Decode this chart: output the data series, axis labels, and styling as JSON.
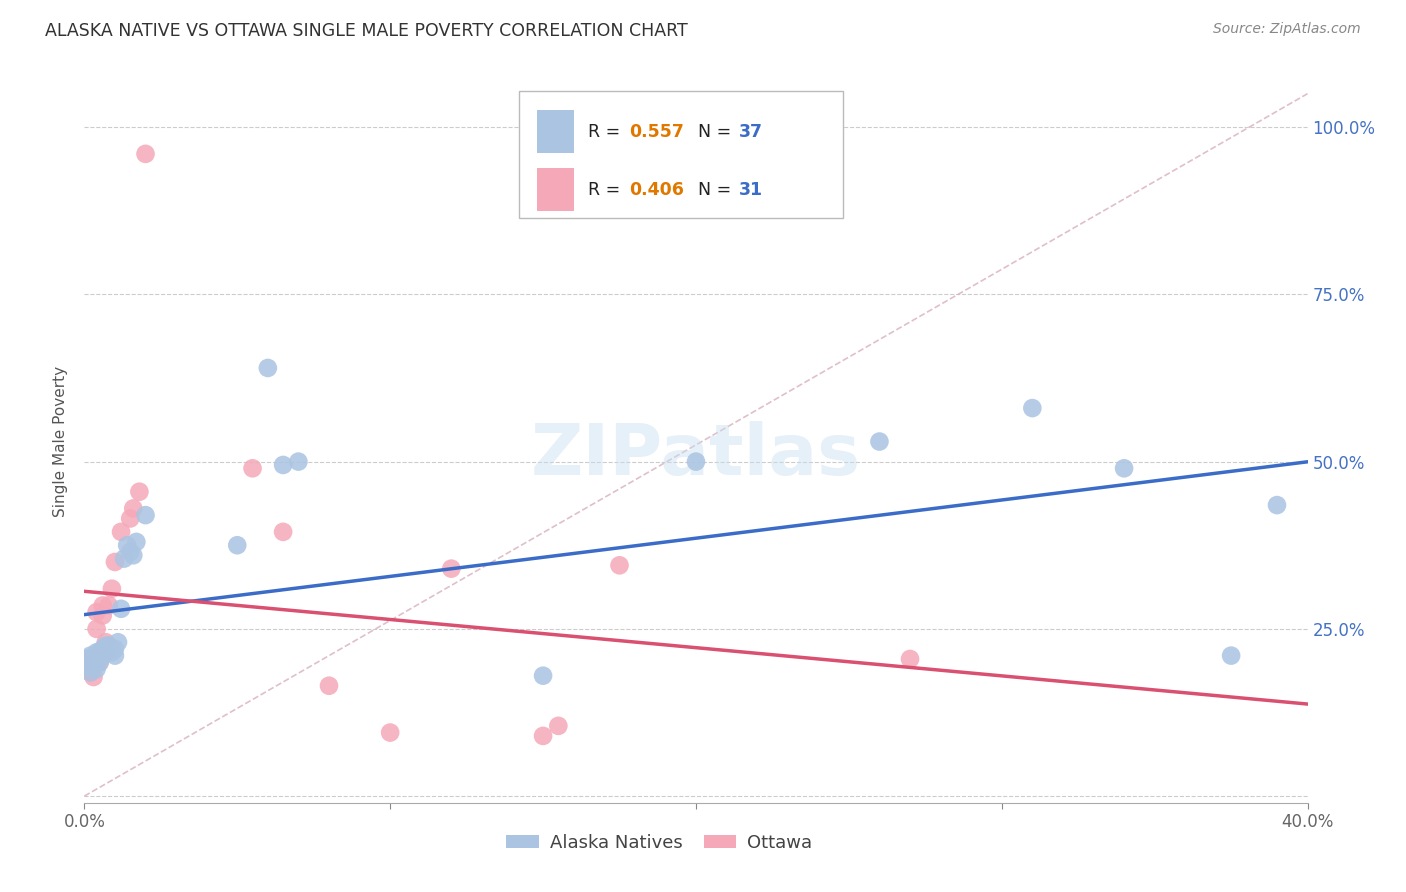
{
  "title": "ALASKA NATIVE VS OTTAWA SINGLE MALE POVERTY CORRELATION CHART",
  "source": "Source: ZipAtlas.com",
  "ylabel": "Single Male Poverty",
  "xlim": [
    0.0,
    0.4
  ],
  "ylim": [
    0.0,
    1.05
  ],
  "xticks": [
    0.0,
    0.1,
    0.2,
    0.3,
    0.4
  ],
  "xtick_labels": [
    "0.0%",
    "",
    "",
    "",
    "40.0%"
  ],
  "ytick_vals": [
    0.0,
    0.25,
    0.5,
    0.75,
    1.0
  ],
  "ytick_labels_right": [
    "",
    "25.0%",
    "50.0%",
    "75.0%",
    "100.0%"
  ],
  "legend_R1": "0.557",
  "legend_N1": "37",
  "legend_R2": "0.406",
  "legend_N2": "31",
  "alaska_color": "#aac4e2",
  "ottawa_color": "#f5a8b8",
  "line_alaska_color": "#3b6cc7",
  "line_ottawa_color": "#d95070",
  "diagonal_color": "#d8b0bc",
  "watermark": "ZIPatlas",
  "alaska_x": [
    0.001,
    0.001,
    0.002,
    0.002,
    0.003,
    0.003,
    0.004,
    0.004,
    0.005,
    0.005,
    0.006,
    0.006,
    0.007,
    0.007,
    0.008,
    0.009,
    0.01,
    0.01,
    0.011,
    0.012,
    0.013,
    0.014,
    0.015,
    0.016,
    0.017,
    0.02,
    0.06,
    0.065,
    0.07,
    0.15,
    0.2,
    0.26,
    0.31,
    0.34,
    0.375,
    0.39,
    0.05
  ],
  "alaska_y": [
    0.195,
    0.205,
    0.185,
    0.21,
    0.195,
    0.205,
    0.19,
    0.215,
    0.2,
    0.215,
    0.21,
    0.22,
    0.215,
    0.225,
    0.225,
    0.215,
    0.22,
    0.21,
    0.23,
    0.28,
    0.355,
    0.375,
    0.365,
    0.36,
    0.38,
    0.42,
    0.64,
    0.495,
    0.5,
    0.18,
    0.5,
    0.53,
    0.58,
    0.49,
    0.21,
    0.435,
    0.375
  ],
  "ottawa_x": [
    0.001,
    0.001,
    0.002,
    0.002,
    0.003,
    0.003,
    0.004,
    0.004,
    0.005,
    0.005,
    0.006,
    0.006,
    0.007,
    0.007,
    0.008,
    0.009,
    0.01,
    0.012,
    0.015,
    0.016,
    0.018,
    0.02,
    0.055,
    0.065,
    0.08,
    0.1,
    0.12,
    0.15,
    0.155,
    0.175,
    0.27
  ],
  "ottawa_y": [
    0.195,
    0.205,
    0.185,
    0.2,
    0.178,
    0.195,
    0.25,
    0.275,
    0.2,
    0.215,
    0.27,
    0.285,
    0.215,
    0.23,
    0.285,
    0.31,
    0.35,
    0.395,
    0.415,
    0.43,
    0.455,
    0.96,
    0.49,
    0.395,
    0.165,
    0.095,
    0.34,
    0.09,
    0.105,
    0.345,
    0.205
  ],
  "figsize": [
    14.06,
    8.92
  ],
  "dpi": 100
}
